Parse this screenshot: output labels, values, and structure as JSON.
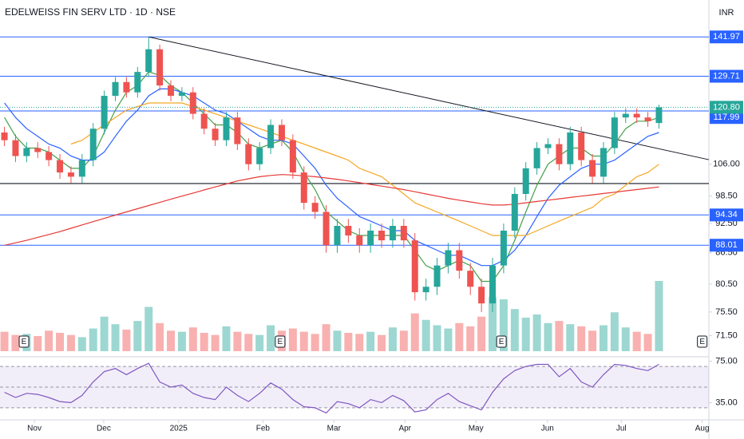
{
  "chart_data": {
    "type": "candlestick",
    "title": "EDELWEISS FIN SERV LTD · 1D · NSE",
    "currency": "INR",
    "log_scale": true,
    "xlim": [
      -0.4,
      63.5
    ],
    "xticks": [
      {
        "value": 2.7,
        "label": "Nov"
      },
      {
        "value": 8.95,
        "label": "Dec"
      },
      {
        "value": 15.7,
        "label": "2025"
      },
      {
        "value": 23.3,
        "label": "Feb"
      },
      {
        "value": 29.7,
        "label": "Mar"
      },
      {
        "value": 36.1,
        "label": "Apr"
      },
      {
        "value": 42.5,
        "label": "May"
      },
      {
        "value": 48.95,
        "label": "Jun"
      },
      {
        "value": 55.6,
        "label": "Jul"
      },
      {
        "value": 62.9,
        "label": "Aug"
      }
    ],
    "ylim": [
      69,
      152
    ],
    "yticks": [
      {
        "value": 106,
        "label": "106.00"
      },
      {
        "value": 98.5,
        "label": "98.50"
      },
      {
        "value": 92.5,
        "label": "92.50"
      },
      {
        "value": 86.5,
        "label": "86.50"
      },
      {
        "value": 80.5,
        "label": "80.50"
      },
      {
        "value": 75.5,
        "label": "75.50"
      },
      {
        "value": 71.5,
        "label": "71.50"
      }
    ],
    "up_color": "#26a69a",
    "down_color": "#ef5350",
    "open": [
      114,
      112,
      108,
      110,
      109,
      107,
      104,
      103,
      107,
      115,
      124,
      128,
      125,
      131,
      138,
      127,
      124,
      125,
      119,
      115,
      112,
      118,
      111,
      106,
      110,
      116,
      112,
      104,
      97,
      95,
      88,
      92,
      90,
      88,
      91,
      89,
      92,
      89,
      79,
      80,
      84,
      87,
      83,
      80,
      77,
      84,
      91,
      99,
      105,
      110,
      111,
      106,
      114,
      107,
      103,
      110,
      118,
      119,
      118,
      116.5
    ],
    "high": [
      115.5,
      113.5,
      111.5,
      111.5,
      110.5,
      108.5,
      105.5,
      108.5,
      116.5,
      125.5,
      129.5,
      129.5,
      132.5,
      141.97,
      139.5,
      128.5,
      126.5,
      126.5,
      120.5,
      116.5,
      119.5,
      119.5,
      112.5,
      111.5,
      117.5,
      117.5,
      113.5,
      105.5,
      98.5,
      96.5,
      93.5,
      93.5,
      91.5,
      92.5,
      92.5,
      93.5,
      93.5,
      90.5,
      81.5,
      85.5,
      88.5,
      88.5,
      84.5,
      81.5,
      85.5,
      92.5,
      100.5,
      106.5,
      111.5,
      112.5,
      112.5,
      115.5,
      115.5,
      108.5,
      111.5,
      119.5,
      120.5,
      120.5,
      119.5,
      121.5
    ],
    "low": [
      110.5,
      106.5,
      106.5,
      107.5,
      105.5,
      102.5,
      101.5,
      101.5,
      105.5,
      113.5,
      122.5,
      123.5,
      123.5,
      129.5,
      125.5,
      122.5,
      122.5,
      117.5,
      113.5,
      110.5,
      110.5,
      109.5,
      104.5,
      104.5,
      108.5,
      110.5,
      102.5,
      95.5,
      93.5,
      86.5,
      86.5,
      88.5,
      86.5,
      86.5,
      87.5,
      87.5,
      87.5,
      77.5,
      77.5,
      78.5,
      82.5,
      81.5,
      78.5,
      75.5,
      75.5,
      82.5,
      89.5,
      97.5,
      103.5,
      108.5,
      104.5,
      104.5,
      105.5,
      101.5,
      101.5,
      108.5,
      116.5,
      116.5,
      115.5,
      115
    ],
    "close": [
      112,
      108,
      110,
      109,
      107,
      104,
      103,
      107,
      115,
      124,
      128,
      125,
      131,
      138,
      127,
      124,
      125,
      119,
      115,
      112,
      118,
      111,
      106,
      110,
      116,
      112,
      104,
      97,
      95,
      88,
      92,
      90,
      88,
      91,
      89,
      92,
      89,
      79,
      80,
      84,
      87,
      83,
      80,
      77,
      84,
      91,
      99,
      105,
      110,
      111,
      106,
      114,
      107,
      103,
      110,
      118,
      119,
      118,
      117,
      120.8
    ],
    "volume": [
      1.8,
      1.5,
      1.6,
      1.4,
      1.9,
      1.7,
      1.5,
      1.3,
      2.1,
      3.2,
      2.5,
      2.0,
      2.8,
      4.1,
      2.6,
      1.9,
      1.8,
      2.2,
      1.7,
      1.5,
      2.3,
      1.8,
      1.6,
      1.5,
      2.4,
      1.9,
      2.1,
      1.8,
      1.6,
      2.5,
      1.9,
      1.7,
      1.6,
      1.8,
      1.5,
      2.2,
      1.9,
      3.5,
      2.9,
      2.4,
      2.1,
      2.6,
      2.3,
      3.2,
      5.0,
      4.8,
      3.9,
      3.1,
      3.4,
      2.6,
      2.8,
      2.5,
      2.3,
      1.9,
      2.4,
      3.6,
      2.2,
      1.8,
      1.6,
      6.5
    ],
    "series": [
      {
        "color": "#43a047",
        "values": [
          118,
          113,
          110,
          110,
          109,
          107,
          105,
          105,
          108,
          114,
          120,
          125,
          127,
          131,
          130,
          127,
          125,
          122,
          119,
          116,
          116,
          114,
          111,
          110,
          111,
          112,
          109,
          104,
          100,
          95,
          93,
          91,
          90,
          90,
          90,
          90,
          90,
          87,
          84,
          83,
          84,
          85,
          84,
          81,
          81,
          84,
          89,
          95,
          101,
          106,
          108,
          110,
          110,
          108,
          108,
          111,
          115,
          117,
          117,
          117.99
        ]
      },
      {
        "color": "#2962ff",
        "values": [
          122,
          118,
          115,
          113,
          111,
          110,
          108,
          107,
          107,
          109,
          113,
          117,
          120,
          124,
          126,
          126,
          125,
          124,
          122,
          120,
          119,
          117,
          115,
          113,
          112,
          112,
          111,
          108,
          105,
          101,
          98,
          96,
          94,
          93,
          92,
          91,
          91,
          89,
          88,
          87,
          86,
          86,
          85,
          84,
          84,
          85,
          87,
          90,
          94,
          98,
          101,
          103,
          105,
          106,
          106,
          107,
          109,
          111,
          113,
          114
        ]
      },
      {
        "color": "#f5a623",
        "values": [
          null,
          null,
          null,
          null,
          null,
          null,
          111,
          112,
          114,
          116,
          118,
          120,
          121,
          122,
          122,
          122,
          122,
          121,
          120,
          119,
          118,
          117,
          116,
          115,
          114,
          113,
          112,
          111,
          110,
          109,
          108,
          107,
          105,
          104,
          103,
          101,
          99,
          97,
          96,
          95,
          94,
          93,
          92,
          91,
          90,
          90,
          90,
          90,
          91,
          92,
          93,
          94,
          95,
          96,
          98,
          99,
          101,
          103,
          104,
          106
        ]
      },
      {
        "color": "#e53935",
        "values": [
          88,
          88.5,
          89,
          89.6,
          90.2,
          90.8,
          91.5,
          92.2,
          92.9,
          93.6,
          94.3,
          95,
          95.7,
          96.4,
          97.1,
          97.8,
          98.5,
          99.2,
          99.9,
          100.6,
          101.3,
          102,
          102.5,
          103,
          103.3,
          103.5,
          103.4,
          103.2,
          103,
          102.7,
          102.4,
          102,
          101.6,
          101.2,
          100.8,
          100.4,
          100,
          99.5,
          99,
          98.5,
          98,
          97.6,
          97.2,
          96.8,
          96.5,
          96.5,
          96.7,
          97,
          97.3,
          97.6,
          97.9,
          98.2,
          98.5,
          98.8,
          99.1,
          99.4,
          99.7,
          100,
          100.3,
          100.6
        ]
      }
    ],
    "levels": [
      141.97,
      129.71,
      119.79,
      94.34,
      88.01
    ],
    "level_color": "#2962ff",
    "support": 101.4,
    "trendline": {
      "x": [
        13,
        63.5
      ],
      "y": [
        141.97,
        107.1
      ]
    },
    "last_price": {
      "value": 120.8,
      "label": "120.80"
    },
    "earnings": {
      "x": [
        1.76,
        24.85,
        44.8,
        62.9
      ],
      "label": "E"
    },
    "rsi": {
      "color": "#7e57c2",
      "ylim": [
        23,
        77
      ],
      "yticks": [
        {
          "value": 75,
          "label": "75.00"
        },
        {
          "value": 35,
          "label": "35.00"
        }
      ],
      "bands": [
        70,
        50,
        30
      ],
      "values": [
        45,
        40,
        44,
        43,
        40,
        36,
        35,
        42,
        55,
        65,
        68,
        62,
        68,
        73,
        55,
        50,
        52,
        44,
        40,
        38,
        50,
        42,
        36,
        44,
        54,
        48,
        38,
        31,
        30,
        25,
        36,
        34,
        30,
        38,
        35,
        42,
        37,
        26,
        28,
        38,
        44,
        36,
        32,
        28,
        45,
        58,
        66,
        70,
        72,
        72,
        60,
        68,
        55,
        50,
        62,
        72,
        71,
        68,
        66,
        72
      ]
    }
  }
}
